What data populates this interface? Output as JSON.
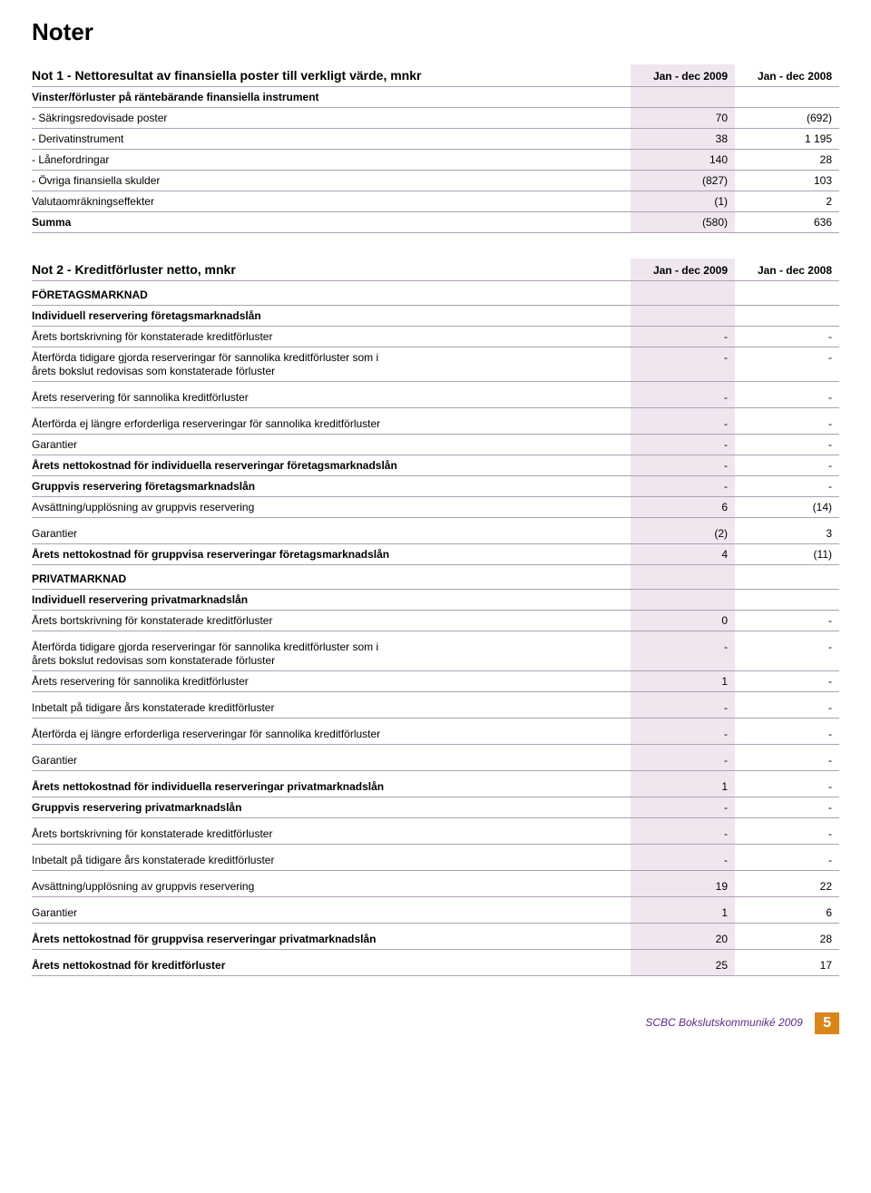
{
  "page_title": "Noter",
  "colors": {
    "header_highlight": "#f0e6f0",
    "rule": "#b0a0b5",
    "footer_text": "#5b2a82",
    "page_badge_bg": "#d9861a",
    "page_badge_fg": "#ffffff"
  },
  "note1": {
    "title": "Not 1 - Nettoresultat av finansiella poster till verkligt värde, mnkr",
    "col1": "Jan - dec 2009",
    "col2": "Jan - dec 2008",
    "rows": [
      {
        "label": "Vinster/förluster på räntebärande finansiella instrument",
        "v1": "",
        "v2": "",
        "bold": true,
        "line": true
      },
      {
        "label": "- Säkringsredovisade poster",
        "v1": "70",
        "v2": "(692)",
        "line": true
      },
      {
        "label": "- Derivatinstrument",
        "v1": "38",
        "v2": "1 195",
        "line": true
      },
      {
        "label": "- Lånefordringar",
        "v1": "140",
        "v2": "28",
        "line": true
      },
      {
        "label": "- Övriga finansiella skulder",
        "v1": "(827)",
        "v2": "103",
        "line": true
      },
      {
        "label": "Valutaomräkningseffekter",
        "v1": "(1)",
        "v2": "2",
        "line": true
      },
      {
        "label": "Summa",
        "v1": "(580)",
        "v2": "636",
        "bold": true,
        "line": true
      }
    ]
  },
  "note2": {
    "title": "Not 2 - Kreditförluster netto, mnkr",
    "col1": "Jan - dec 2009",
    "col2": "Jan - dec 2008",
    "rows": [
      {
        "label": "FÖRETAGSMARKNAD",
        "v1": "",
        "v2": "",
        "section": true,
        "line": true
      },
      {
        "label": "Individuell reservering företagsmarknadslån",
        "v1": "",
        "v2": "",
        "bold": true,
        "line": true
      },
      {
        "label": "Årets bortskrivning för konstaterade kreditförluster",
        "v1": "-",
        "v2": "-",
        "line": true
      },
      {
        "label": "Återförda tidigare gjorda reserveringar för sannolika kreditförluster som i",
        "label2": "årets bokslut redovisas som konstaterade förluster",
        "v1": "-",
        "v2": "-",
        "line": true
      },
      {
        "label": "Årets reservering för sannolika kreditförluster",
        "v1": "-",
        "v2": "-",
        "line": true,
        "space": true
      },
      {
        "label": "Återförda ej längre erforderliga reserveringar för sannolika kreditförluster",
        "v1": "-",
        "v2": "-",
        "line": true,
        "space": true
      },
      {
        "label": "Garantier",
        "v1": "-",
        "v2": "-",
        "line": true
      },
      {
        "label": "Årets nettokostnad för individuella reserveringar företagsmarknadslån",
        "v1": "-",
        "v2": "-",
        "bold": true,
        "line": true
      },
      {
        "label": "Gruppvis reservering företagsmarknadslån",
        "v1": "-",
        "v2": "-",
        "bold": true,
        "line": true
      },
      {
        "label": "Avsättning/upplösning av gruppvis reservering",
        "v1": "6",
        "v2": "(14)",
        "line": true
      },
      {
        "label": "Garantier",
        "v1": "(2)",
        "v2": "3",
        "line": true,
        "space": true
      },
      {
        "label": "Årets nettokostnad för gruppvisa reserveringar företagsmarknadslån",
        "v1": "4",
        "v2": "(11)",
        "bold": true,
        "line": true
      },
      {
        "label": "PRIVATMARKNAD",
        "v1": "",
        "v2": "",
        "section": true,
        "line": true
      },
      {
        "label": "Individuell reservering privatmarknadslån",
        "v1": "",
        "v2": "",
        "bold": true,
        "line": true
      },
      {
        "label": "Årets bortskrivning för konstaterade kreditförluster",
        "v1": "0",
        "v2": "-",
        "line": true
      },
      {
        "label": "Återförda tidigare gjorda reserveringar för sannolika kreditförluster som i",
        "label2": "årets bokslut redovisas som konstaterade förluster",
        "v1": "-",
        "v2": "-",
        "line": true,
        "space": true
      },
      {
        "label": "Årets reservering för sannolika kreditförluster",
        "v1": "1",
        "v2": "-",
        "line": true
      },
      {
        "label": "Inbetalt på tidigare års konstaterade kreditförluster",
        "v1": "-",
        "v2": "-",
        "line": true,
        "space": true
      },
      {
        "label": "Återförda ej längre erforderliga reserveringar för sannolika kreditförluster",
        "v1": "-",
        "v2": "-",
        "line": true,
        "space": true
      },
      {
        "label": "Garantier",
        "v1": "-",
        "v2": "-",
        "line": true,
        "space": true
      },
      {
        "label": "Årets nettokostnad för individuella reserveringar privatmarknadslån",
        "v1": "1",
        "v2": "-",
        "bold": true,
        "line": true,
        "space": true
      },
      {
        "label": "Gruppvis reservering privatmarknadslån",
        "v1": "-",
        "v2": "-",
        "bold": true,
        "line": true
      },
      {
        "label": "Årets bortskrivning för konstaterade kreditförluster",
        "v1": "-",
        "v2": "-",
        "line": true,
        "space": true
      },
      {
        "label": "Inbetalt på tidigare års konstaterade kreditförluster",
        "v1": "-",
        "v2": "-",
        "line": true,
        "space": true
      },
      {
        "label": "Avsättning/upplösning av gruppvis reservering",
        "v1": "19",
        "v2": "22",
        "line": true,
        "space": true
      },
      {
        "label": "Garantier",
        "v1": "1",
        "v2": "6",
        "line": true,
        "space": true
      },
      {
        "label": "Årets nettokostnad för gruppvisa reserveringar privatmarknadslån",
        "v1": "20",
        "v2": "28",
        "bold": true,
        "line": true,
        "space": true
      },
      {
        "label": "Årets nettokostnad för kreditförluster",
        "v1": "25",
        "v2": "17",
        "bold": true,
        "line": true,
        "space": true
      }
    ]
  },
  "footer": {
    "text": "SCBC Bokslutskommuniké 2009",
    "page": "5"
  }
}
